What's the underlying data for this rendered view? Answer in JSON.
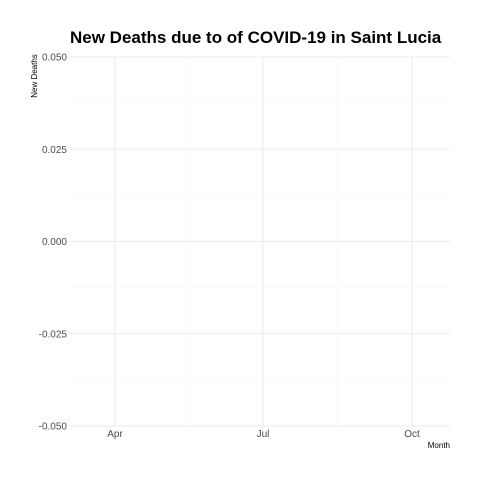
{
  "chart_data": {
    "type": "line",
    "title": "New Deaths due to of COVID-19 in Saint Lucia",
    "xlabel": "Month",
    "ylabel": "New Deaths",
    "x_ticks": [
      "Apr",
      "Jul",
      "Oct"
    ],
    "y_ticks": [
      "0.050",
      "0.025",
      "0.000",
      "-0.025",
      "-0.050"
    ],
    "ylim": [
      -0.05,
      0.05
    ],
    "series": [],
    "grid": true,
    "background": "#ffffff",
    "grid_major_color": "#ebebeb",
    "grid_minor_color": "#f4f4f4"
  }
}
